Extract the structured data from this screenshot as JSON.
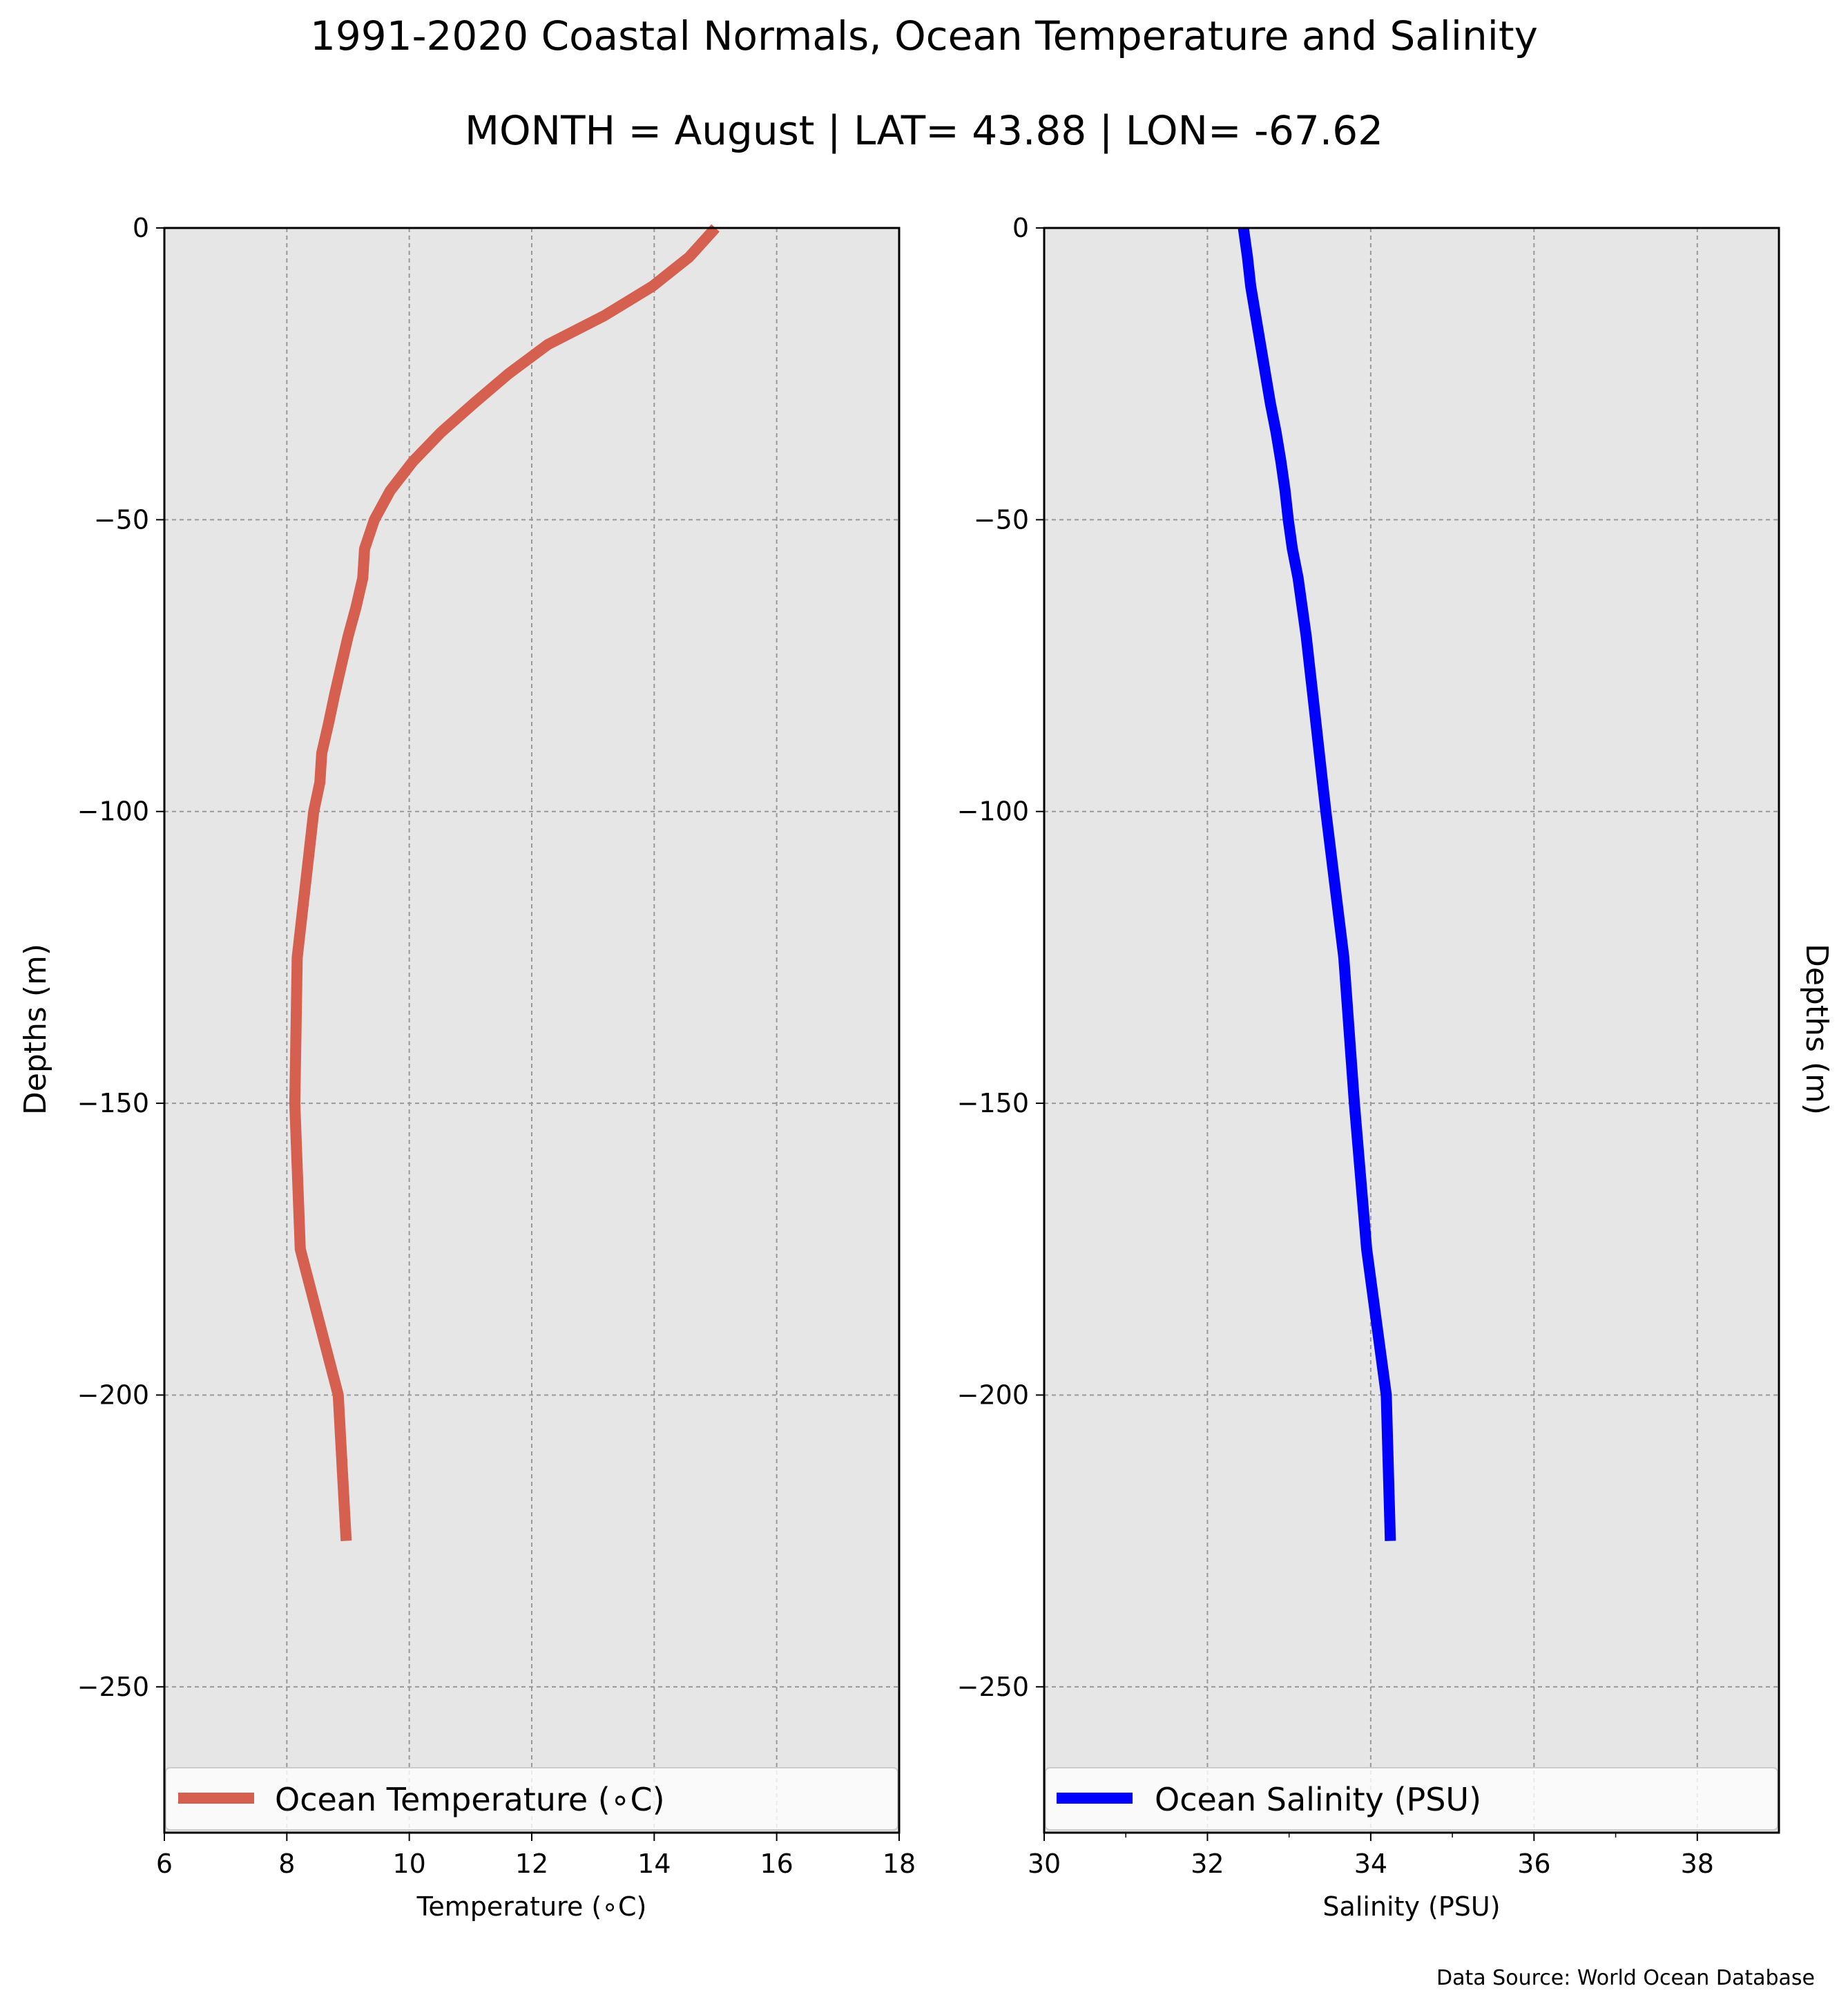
{
  "chart_title": "1991-2020 Coastal Normals, Ocean Temperature and Salinity",
  "chart_subtitle": "MONTH = August | LAT= 43.88 | LON= -67.62",
  "source": "Data Source: World Ocean Database",
  "colors": {
    "temperature": "#d56050",
    "salinity": "#0000ff",
    "plot_background": "#e6e6e6"
  },
  "chart_data": [
    {
      "type": "line",
      "xlabel": "Temperature ($^∘$C)",
      "xlabel_display": "Temperature (∘C)",
      "ylabel": "Depths (m)",
      "xlim": [
        6,
        18
      ],
      "ylim": [
        -275,
        0
      ],
      "xticks": [
        "6",
        "8",
        "10",
        "12",
        "14",
        "16",
        "18"
      ],
      "yticks": [
        "0",
        "−50",
        "−100",
        "−150",
        "−200",
        "−250"
      ],
      "grid": true,
      "legend_position": "bottom",
      "series": [
        {
          "name": "Ocean Temperature ($^∘$C)",
          "display_name": "Ocean Temperature (∘C)",
          "points": [
            [
              15.0,
              0
            ],
            [
              14.57,
              -5
            ],
            [
              13.97,
              -10
            ],
            [
              13.19,
              -15
            ],
            [
              12.26,
              -20
            ],
            [
              11.62,
              -25
            ],
            [
              11.06,
              -30
            ],
            [
              10.52,
              -35
            ],
            [
              10.06,
              -40
            ],
            [
              9.69,
              -45
            ],
            [
              9.43,
              -50
            ],
            [
              9.27,
              -55
            ],
            [
              9.24,
              -60
            ],
            [
              9.13,
              -65
            ],
            [
              9.0,
              -70
            ],
            [
              8.89,
              -75
            ],
            [
              8.78,
              -80
            ],
            [
              8.68,
              -85
            ],
            [
              8.57,
              -90
            ],
            [
              8.54,
              -95
            ],
            [
              8.44,
              -100
            ],
            [
              8.17,
              -125
            ],
            [
              8.13,
              -150
            ],
            [
              8.22,
              -175
            ],
            [
              8.84,
              -200
            ],
            [
              8.97,
              -225
            ]
          ]
        }
      ]
    },
    {
      "type": "line",
      "xlabel": "Salinity (PSU)",
      "ylabel": "Depths (m)",
      "ylabel_side": "right",
      "xlim": [
        30,
        39
      ],
      "ylim": [
        -275,
        0
      ],
      "xticks": [
        "30",
        "32",
        "34",
        "36",
        "38"
      ],
      "yticks": [
        "0",
        "−50",
        "−100",
        "−150",
        "−200",
        "−250"
      ],
      "grid": true,
      "legend_position": "bottom",
      "series": [
        {
          "name": "Ocean Salinity (PSU)",
          "points": [
            [
              32.44,
              0
            ],
            [
              32.49,
              -5
            ],
            [
              32.53,
              -10
            ],
            [
              32.59,
              -15
            ],
            [
              32.65,
              -20
            ],
            [
              32.71,
              -25
            ],
            [
              32.77,
              -30
            ],
            [
              32.84,
              -35
            ],
            [
              32.9,
              -40
            ],
            [
              32.95,
              -45
            ],
            [
              32.99,
              -50
            ],
            [
              33.04,
              -55
            ],
            [
              33.11,
              -60
            ],
            [
              33.16,
              -65
            ],
            [
              33.21,
              -70
            ],
            [
              33.25,
              -75
            ],
            [
              33.29,
              -80
            ],
            [
              33.33,
              -85
            ],
            [
              33.37,
              -90
            ],
            [
              33.41,
              -95
            ],
            [
              33.45,
              -100
            ],
            [
              33.67,
              -125
            ],
            [
              33.8,
              -150
            ],
            [
              33.95,
              -175
            ],
            [
              34.19,
              -200
            ],
            [
              34.24,
              -225
            ]
          ]
        }
      ]
    }
  ]
}
